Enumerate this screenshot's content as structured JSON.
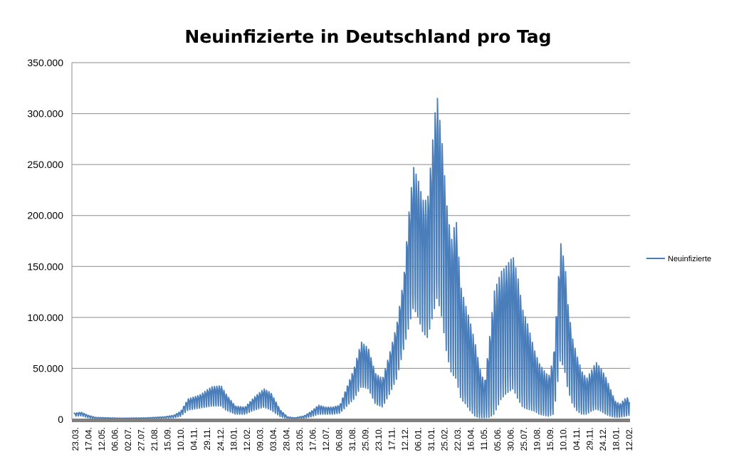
{
  "chart_data": {
    "type": "line",
    "title": "Neuinfizierte in Deutschland pro Tag",
    "xlabel": "",
    "ylabel": "",
    "ylim": [
      0,
      350000
    ],
    "y_ticks": [
      {
        "value": 0,
        "label": "0"
      },
      {
        "value": 50000,
        "label": "50.000"
      },
      {
        "value": 100000,
        "label": "100.000"
      },
      {
        "value": 150000,
        "label": "150.000"
      },
      {
        "value": 200000,
        "label": "200.000"
      },
      {
        "value": 250000,
        "label": "250.000"
      },
      {
        "value": 300000,
        "label": "300.000"
      },
      {
        "value": 350000,
        "label": "350.000"
      }
    ],
    "x_tick_labels": [
      "23.03.",
      "17.04.",
      "12.05.",
      "06.06.",
      "02.07.",
      "27.07.",
      "21.08.",
      "15.09.",
      "10.10.",
      "04.11.",
      "29.11.",
      "24.12.",
      "18.01.",
      "12.02.",
      "09.03.",
      "03.04.",
      "28.04.",
      "23.05.",
      "17.06.",
      "12.07.",
      "06.08.",
      "31.08.",
      "25.09.",
      "23.10.",
      "17.11.",
      "12.12.",
      "06.01.",
      "31.01.",
      "25.02.",
      "22.03.",
      "16.04.",
      "11.05.",
      "05.06.",
      "30.06.",
      "25.07.",
      "19.08.",
      "15.09.",
      "10.10.",
      "04.11.",
      "29.11.",
      "24.12.",
      "18.01.",
      "12.02."
    ],
    "grid": true,
    "legend_position": "right",
    "series": [
      {
        "name": "Neuinfizierte",
        "color": "#4a7ebb",
        "envelope": [
          [
            0,
            6000,
            3000
          ],
          [
            3,
            7000,
            3500
          ],
          [
            6,
            4000,
            1500
          ],
          [
            9,
            2000,
            500
          ],
          [
            15,
            1500,
            500
          ],
          [
            20,
            1200,
            400
          ],
          [
            30,
            1500,
            500
          ],
          [
            38,
            2500,
            1000
          ],
          [
            42,
            4000,
            1500
          ],
          [
            45,
            8000,
            3000
          ],
          [
            48,
            20000,
            9000
          ],
          [
            53,
            24000,
            11000
          ],
          [
            58,
            32000,
            13000
          ],
          [
            62,
            33000,
            13000
          ],
          [
            64,
            25000,
            9000
          ],
          [
            68,
            13000,
            5000
          ],
          [
            72,
            12000,
            5000
          ],
          [
            76,
            22000,
            9000
          ],
          [
            80,
            30000,
            12000
          ],
          [
            83,
            26000,
            9000
          ],
          [
            87,
            9000,
            2500
          ],
          [
            90,
            2500,
            700
          ],
          [
            93,
            1500,
            500
          ],
          [
            97,
            3500,
            1000
          ],
          [
            100,
            8000,
            2500
          ],
          [
            103,
            14000,
            5000
          ],
          [
            106,
            12000,
            5000
          ],
          [
            109,
            12000,
            5000
          ],
          [
            112,
            14000,
            6000
          ],
          [
            115,
            32000,
            13000
          ],
          [
            118,
            50000,
            20000
          ],
          [
            121,
            76000,
            32000
          ],
          [
            124,
            70000,
            30000
          ],
          [
            127,
            45000,
            15000
          ],
          [
            130,
            40000,
            12000
          ],
          [
            133,
            65000,
            25000
          ],
          [
            136,
            93000,
            40000
          ],
          [
            139,
            140000,
            70000
          ],
          [
            141,
            200000,
            90000
          ],
          [
            143,
            248000,
            110000
          ],
          [
            145,
            235000,
            100000
          ],
          [
            147,
            215000,
            85000
          ],
          [
            149,
            215000,
            80000
          ],
          [
            152,
            298000,
            110000
          ],
          [
            153,
            318000,
            120000
          ],
          [
            155,
            275000,
            100000
          ],
          [
            157,
            212000,
            65000
          ],
          [
            159,
            175000,
            45000
          ],
          [
            161,
            198000,
            40000
          ],
          [
            163,
            130000,
            20000
          ],
          [
            165,
            112000,
            15000
          ],
          [
            167,
            95000,
            8000
          ],
          [
            169,
            75000,
            3000
          ],
          [
            171,
            50000,
            1500
          ],
          [
            173,
            35000,
            1500
          ],
          [
            175,
            78000,
            2000
          ],
          [
            177,
            125000,
            5000
          ],
          [
            180,
            145000,
            20000
          ],
          [
            182,
            150000,
            25000
          ],
          [
            185,
            160000,
            30000
          ],
          [
            187,
            140000,
            20000
          ],
          [
            189,
            108000,
            12000
          ],
          [
            191,
            95000,
            10000
          ],
          [
            194,
            68000,
            8000
          ],
          [
            196,
            55000,
            5000
          ],
          [
            198,
            48000,
            4000
          ],
          [
            200,
            42000,
            3000
          ],
          [
            202,
            60000,
            5000
          ],
          [
            203,
            95000,
            20000
          ],
          [
            205,
            174000,
            60000
          ],
          [
            207,
            150000,
            45000
          ],
          [
            208,
            115000,
            30000
          ],
          [
            210,
            80000,
            15000
          ],
          [
            212,
            62000,
            8000
          ],
          [
            214,
            47000,
            5000
          ],
          [
            216,
            40000,
            5000
          ],
          [
            218,
            48000,
            8000
          ],
          [
            220,
            56000,
            10000
          ],
          [
            222,
            50000,
            8000
          ],
          [
            224,
            42000,
            5000
          ],
          [
            226,
            30000,
            3000
          ],
          [
            228,
            18000,
            2000
          ],
          [
            230,
            15000,
            2000
          ],
          [
            232,
            20000,
            3000
          ],
          [
            234,
            22000,
            4000
          ]
        ]
      }
    ]
  }
}
